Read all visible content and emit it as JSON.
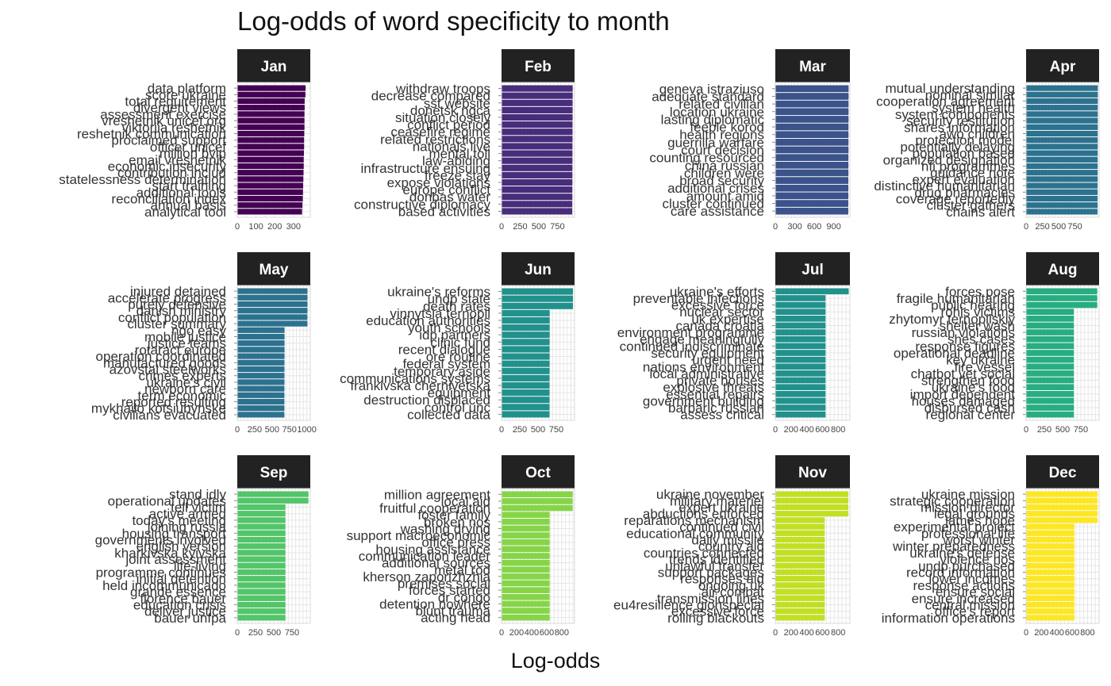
{
  "title": "Log-odds of word specificity to month",
  "xlabel": "Log-odds",
  "chart_data": {
    "type": "bar",
    "orientation": "horizontal",
    "title": "Log-odds of word specificity to month",
    "xlabel": "Log-odds",
    "ylabel": "",
    "grid": true,
    "legend": "none",
    "panels": [
      {
        "name": "Jan",
        "color": "#440154",
        "xlim": [
          0,
          390
        ],
        "ticks": [
          0,
          100,
          200,
          300
        ],
        "tick_labels": [
          "0",
          "100",
          "200",
          "300"
        ],
        "categories": [
          "data platform",
          "score ukraine",
          "total requirement",
          "divergent views",
          "assessment exercise",
          "vreshetnik unicef.org",
          "viktoriia reshetnik",
          "reshetnik communication",
          "proclaimed support",
          "officer unicef",
          "million bvip",
          "email vreshetnik",
          "economic insecurity",
          "contribution includ",
          "statelessness determination",
          "start training",
          "additional tools",
          "reconciliation index",
          "annual basis",
          "analytical tool"
        ],
        "values": [
          365,
          364,
          360,
          360,
          359,
          359,
          359,
          358,
          357,
          357,
          356,
          355,
          355,
          354,
          353,
          352,
          351,
          350,
          348,
          346
        ]
      },
      {
        "name": "Feb",
        "color": "#472d7b",
        "xlim": [
          0,
          980
        ],
        "ticks": [
          0,
          250,
          500,
          750
        ],
        "tick_labels": [
          "0",
          "250",
          "500",
          "750"
        ],
        "categories": [
          "withdraw troops",
          "decrease compared",
          "sst website",
          "donetsk ngca",
          "situation closely",
          "conflict period",
          "ceasefire regime",
          "related restrictions",
          "nationals live",
          "mental toll",
          "law-abiding",
          "infrastructure ensuing",
          "freeze stay",
          "expose violations",
          "europe conflict",
          "donbas water",
          "constructive diplomacy",
          "based activities"
        ],
        "values": [
          955,
          955,
          954,
          954,
          954,
          953,
          953,
          953,
          952,
          952,
          952,
          951,
          951,
          951,
          950,
          950,
          949,
          949
        ]
      },
      {
        "name": "Mar",
        "color": "#3b528b",
        "xlim": [
          0,
          1150
        ],
        "ticks": [
          0,
          300,
          600,
          900
        ],
        "tick_labels": [
          "0",
          "300",
          "600",
          "900"
        ],
        "categories": [
          "geneva istraziuso",
          "adequate standard",
          "related civilian",
          "location ukraine",
          "lasting diplomatic",
          "feeble korod",
          "health regions",
          "guerrilla warfare",
          "court decision",
          "counting resourced",
          "china russian",
          "children were",
          "broad security",
          "additional crises",
          "amount amid",
          "cluster continued",
          "care assistance"
        ],
        "values": [
          1130,
          1130,
          1129,
          1129,
          1129,
          1128,
          1128,
          1128,
          1128,
          1127,
          1127,
          1127,
          1126,
          1126,
          1126,
          1125,
          1125
        ]
      },
      {
        "name": "Apr",
        "color": "#2c728e",
        "xlim": [
          0,
          1120
        ],
        "ticks": [
          0,
          250,
          500,
          750
        ],
        "tick_labels": [
          "0",
          "250",
          "500",
          "750"
        ],
        "categories": [
          "mutual understanding",
          "nominal similar",
          "cooperation agreement",
          "system health",
          "system components",
          "security restitution",
          "shares information",
          "awo children",
          "protection model",
          "potentially delaying",
          "population based",
          "organized designation",
          "nfi programmes",
          "guidance note",
          "expert evaluation",
          "distinctive humanitarian",
          "drug pharmacies",
          "coverage reportedly",
          "cluster gathers",
          "chains alert"
        ],
        "values": [
          1100,
          1100,
          1100,
          1099,
          1099,
          1099,
          1099,
          1098,
          1098,
          1098,
          1098,
          1097,
          1097,
          1097,
          1097,
          1096,
          1096,
          1096,
          1096,
          1095
        ]
      },
      {
        "name": "May",
        "color": "#2c728e",
        "xlim": [
          0,
          1050
        ],
        "ticks": [
          0,
          250,
          500,
          750,
          1000
        ],
        "tick_labels": [
          "0",
          "250",
          "500",
          "750",
          "1000"
        ],
        "categories": [
          "injured detained",
          "accelerate progress",
          "purely defensive",
          "danish ministry",
          "conflict population",
          "cluster summary",
          "ngo easy",
          "mobile justice",
          "justice teams",
          "rotaract europe",
          "operation coordinated",
          "manufactured goods",
          "azovstal steelworks",
          "crimes experts",
          "ukraine's civil",
          "newborn care",
          "term economic",
          "reported resulting",
          "mykhailo kotsiubynske",
          "civilians evacuated"
        ],
        "values": [
          1010,
          1010,
          1010,
          1010,
          1009,
          1009,
          680,
          680,
          680,
          680,
          680,
          679,
          679,
          679,
          679,
          678,
          678,
          678,
          678,
          678
        ]
      },
      {
        "name": "Jun",
        "color": "#21918c",
        "xlim": [
          0,
          1000
        ],
        "ticks": [
          0,
          250,
          500,
          750
        ],
        "tick_labels": [
          "0",
          "250",
          "500",
          "750"
        ],
        "categories": [
          "ukraine's reforms",
          "undp state",
          "death rates",
          "vinnytsia ternopil",
          "education authorities",
          "youth schools",
          "idp partners",
          "clinic fund",
          "recent dialogue",
          "ore routine",
          "federal system",
          "temporary aside",
          "communications systems",
          "frankivska chernivetska",
          "equipment",
          "destruction displaced",
          "control unc",
          "collected data"
        ],
        "values": [
          978,
          978,
          978,
          660,
          660,
          660,
          660,
          659,
          659,
          659,
          659,
          659,
          658,
          658,
          658,
          658,
          658,
          658
        ]
      },
      {
        "name": "Jul",
        "color": "#21918c",
        "xlim": [
          0,
          950
        ],
        "ticks": [
          0,
          200,
          400,
          600,
          800
        ],
        "tick_labels": [
          "0",
          "200",
          "400",
          "600",
          "800"
        ],
        "categories": [
          "ukraine's efforts",
          "preventable infections",
          "excessive force",
          "nuclear sector",
          "uk expertise",
          "canada croatia",
          "environment programme",
          "engage meaningfully",
          "continued indiscriminate",
          "security equipment",
          "urgent need",
          "nations environment",
          "local administrative",
          "private houses",
          "explosive threats",
          "essential repairs",
          "government building",
          "barbaric russian",
          "assess critical"
        ],
        "values": [
          935,
          640,
          640,
          640,
          640,
          640,
          640,
          640,
          640,
          640,
          640,
          640,
          640,
          640,
          640,
          640,
          640,
          640,
          640
        ]
      },
      {
        "name": "Aug",
        "color": "#27ad81",
        "xlim": [
          0,
          1000
        ],
        "ticks": [
          0,
          250,
          500,
          750
        ],
        "tick_labels": [
          "0",
          "250",
          "500",
          "750"
        ],
        "categories": [
          "forces pose",
          "fragile humanitarian",
          "public hearing",
          "rohis victims",
          "zhytomyr ternopilskiy",
          "shelter wash",
          "russian violations",
          "shes cases",
          "response figures",
          "operational deadline",
          "key ukraine",
          "fire vessel",
          "chatbot vet social",
          "strengthen food",
          "ukraine's food",
          "import dependent",
          "houses damaged",
          "disbursed cash",
          "regional center"
        ],
        "values": [
          975,
          975,
          975,
          655,
          655,
          655,
          655,
          655,
          655,
          655,
          655,
          655,
          655,
          655,
          655,
          655,
          655,
          655,
          655
        ]
      },
      {
        "name": "Sep",
        "color": "#52c569",
        "xlim": [
          0,
          1000
        ],
        "ticks": [
          0,
          250,
          500,
          750
        ],
        "tick_labels": [
          "0",
          "250",
          "500",
          "750"
        ],
        "categories": [
          "stand idly",
          "operational updates",
          "tell victim",
          "active armed",
          "today's meeting",
          "joining russia",
          "housing transport",
          "governments involved",
          "english version",
          "kharkivska kyivska",
          "joint assessment",
          "life-living",
          "programme continues",
          "initial detention",
          "held incommunicado",
          "grande essence",
          "florence bauer",
          "education crisis",
          "deliver justice",
          "bauer unfpa"
        ],
        "values": [
          975,
          975,
          660,
          660,
          660,
          660,
          660,
          660,
          660,
          660,
          660,
          660,
          660,
          660,
          660,
          660,
          660,
          660,
          660,
          660
        ]
      },
      {
        "name": "Oct",
        "color": "#86d549",
        "xlim": [
          0,
          970
        ],
        "ticks": [
          0,
          200,
          400,
          600,
          800
        ],
        "tick_labels": [
          "0",
          "200",
          "400",
          "600",
          "800"
        ],
        "categories": [
          "million agreement",
          "local aid",
          "fruitful cooperation",
          "foster family",
          "broken nos",
          "washing drying",
          "support macroeconomic",
          "office press",
          "housing assistance",
          "communication leader",
          "additional sources",
          "metal rod",
          "kherson zaporizhzhia",
          "premises social",
          "forces started",
          "dr congo",
          "detention nowhere",
          "blunt trauma",
          "acting head"
        ],
        "values": [
          945,
          945,
          945,
          640,
          640,
          640,
          640,
          640,
          640,
          640,
          640,
          640,
          640,
          640,
          640,
          640,
          640,
          640,
          640
        ]
      },
      {
        "name": "Nov",
        "color": "#c2df23",
        "xlim": [
          0,
          950
        ],
        "ticks": [
          0,
          200,
          400,
          600,
          800
        ],
        "tick_labels": [
          "0",
          "200",
          "400",
          "600",
          "800"
        ],
        "categories": [
          "ukraine november",
          "military materiel",
          "expert ukraine",
          "abductions enforced",
          "reparations mechanism",
          "continued civil",
          "educational community",
          "daily missile",
          "country aid",
          "countries connected",
          "trends identified",
          "unlawful transfer",
          "support packages",
          "responses aid",
          "ongoing uk",
          "air combat",
          "transmission lines",
          "eu4resilience gionspecial",
          "excessive force",
          "rolling blackouts"
        ],
        "values": [
          930,
          930,
          930,
          930,
          630,
          630,
          630,
          630,
          630,
          630,
          630,
          630,
          630,
          630,
          630,
          630,
          630,
          630,
          630,
          630
        ]
      },
      {
        "name": "Dec",
        "color": "#fde725",
        "xlim": [
          0,
          950
        ],
        "ticks": [
          0,
          200,
          400,
          600,
          800
        ],
        "tick_labels": [
          "0",
          "200",
          "400",
          "600",
          "800"
        ],
        "categories": [
          "ukraine mission",
          "strategic cooperation",
          "mission director",
          "legal grounds",
          "james hope",
          "experimental project",
          "professional life",
          "worst winter",
          "winter preparedness",
          "ukraine's defense",
          "violence nos",
          "undp purchased",
          "record information",
          "lower incomes",
          "response actions",
          "ensure social",
          "ensure increased",
          "central mission",
          "office's report",
          "information operations"
        ],
        "values": [
          930,
          930,
          930,
          930,
          930,
          630,
          630,
          630,
          630,
          630,
          630,
          630,
          630,
          630,
          630,
          630,
          630,
          630,
          630,
          630
        ]
      }
    ]
  }
}
